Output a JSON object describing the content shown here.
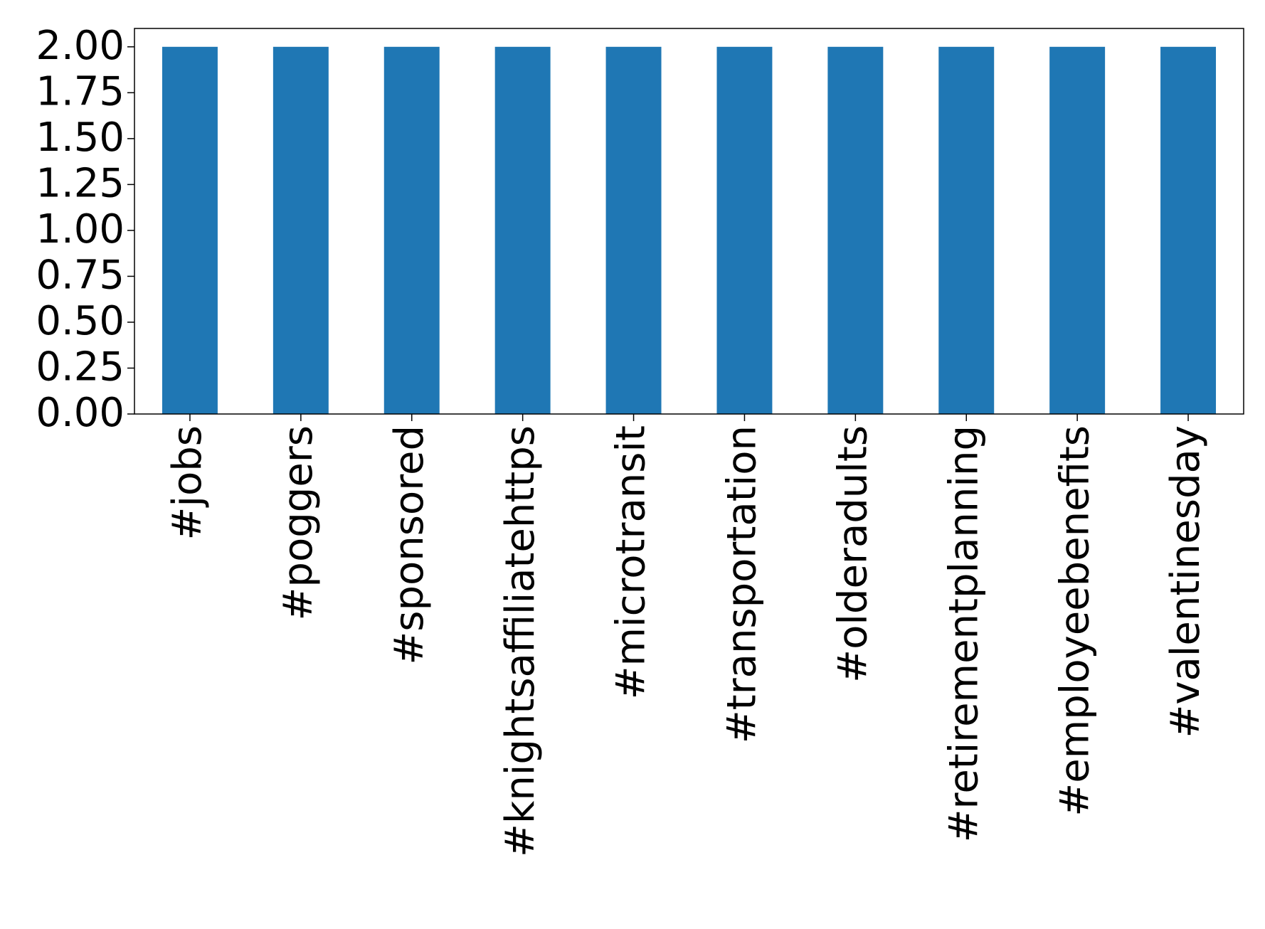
{
  "chart_data": {
    "type": "bar",
    "categories": [
      "#jobs",
      "#poggers",
      "#sponsored",
      "#knightsaffiliatehttps",
      "#microtransit",
      "#transportation",
      "#olderadults",
      "#retirementplanning",
      "#employeebenefits",
      "#valentinesday"
    ],
    "values": [
      2,
      2,
      2,
      2,
      2,
      2,
      2,
      2,
      2,
      2
    ],
    "color": "#1f77b4",
    "ylim": [
      0,
      2.1
    ],
    "yticks": [
      {
        "value": 0,
        "label": "0.00"
      },
      {
        "value": 0.25,
        "label": "0.25"
      },
      {
        "value": 0.5,
        "label": "0.50"
      },
      {
        "value": 0.75,
        "label": "0.75"
      },
      {
        "value": 1,
        "label": "1.00"
      },
      {
        "value": 1.25,
        "label": "1.25"
      },
      {
        "value": 1.5,
        "label": "1.50"
      },
      {
        "value": 1.75,
        "label": "1.75"
      },
      {
        "value": 2,
        "label": "2.00"
      }
    ],
    "grid": false
  }
}
